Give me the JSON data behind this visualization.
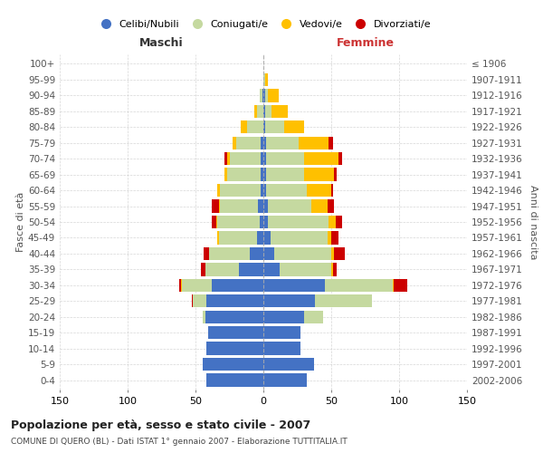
{
  "age_groups": [
    "0-4",
    "5-9",
    "10-14",
    "15-19",
    "20-24",
    "25-29",
    "30-34",
    "35-39",
    "40-44",
    "45-49",
    "50-54",
    "55-59",
    "60-64",
    "65-69",
    "70-74",
    "75-79",
    "80-84",
    "85-89",
    "90-94",
    "95-99",
    "100+"
  ],
  "birth_years": [
    "2002-2006",
    "1997-2001",
    "1992-1996",
    "1987-1991",
    "1982-1986",
    "1977-1981",
    "1972-1976",
    "1967-1971",
    "1962-1966",
    "1957-1961",
    "1952-1956",
    "1947-1951",
    "1942-1946",
    "1937-1941",
    "1932-1936",
    "1927-1931",
    "1922-1926",
    "1917-1921",
    "1912-1916",
    "1907-1911",
    "≤ 1906"
  ],
  "males": {
    "celibi": [
      42,
      45,
      42,
      41,
      43,
      42,
      38,
      18,
      10,
      5,
      3,
      4,
      2,
      2,
      2,
      2,
      0,
      0,
      1,
      0,
      0
    ],
    "coniugati": [
      0,
      0,
      0,
      0,
      2,
      10,
      22,
      25,
      30,
      28,
      31,
      28,
      30,
      25,
      23,
      18,
      12,
      5,
      2,
      0,
      0
    ],
    "vedovi": [
      0,
      0,
      0,
      0,
      0,
      0,
      1,
      0,
      0,
      1,
      1,
      1,
      2,
      2,
      2,
      3,
      5,
      2,
      0,
      0,
      0
    ],
    "divorziati": [
      0,
      0,
      0,
      0,
      0,
      1,
      1,
      3,
      4,
      0,
      3,
      5,
      0,
      0,
      2,
      0,
      0,
      0,
      0,
      0,
      0
    ]
  },
  "females": {
    "nubili": [
      32,
      37,
      27,
      27,
      30,
      38,
      45,
      12,
      8,
      5,
      3,
      3,
      2,
      2,
      2,
      2,
      1,
      1,
      1,
      0,
      0
    ],
    "coniugate": [
      0,
      0,
      0,
      0,
      14,
      42,
      50,
      38,
      42,
      42,
      45,
      32,
      30,
      28,
      28,
      24,
      14,
      5,
      2,
      1,
      0
    ],
    "vedove": [
      0,
      0,
      0,
      0,
      0,
      0,
      1,
      1,
      2,
      3,
      5,
      12,
      18,
      22,
      25,
      22,
      15,
      12,
      8,
      2,
      0
    ],
    "divorziate": [
      0,
      0,
      0,
      0,
      0,
      0,
      10,
      3,
      8,
      5,
      5,
      5,
      1,
      2,
      3,
      3,
      0,
      0,
      0,
      0,
      0
    ]
  },
  "colors": {
    "celibi": "#4472c4",
    "coniugati": "#c5d9a0",
    "vedovi": "#ffc000",
    "divorziati": "#cc0000"
  },
  "title": "Popolazione per età, sesso e stato civile - 2007",
  "subtitle": "COMUNE DI QUERO (BL) - Dati ISTAT 1° gennaio 2007 - Elaborazione TUTTITALIA.IT",
  "ylabel_left": "Fasce di età",
  "ylabel_right": "Anni di nascita",
  "xlabel_left": "Maschi",
  "xlabel_right": "Femmine",
  "xlim": 150,
  "legend_labels": [
    "Celibi/Nubili",
    "Coniugati/e",
    "Vedovi/e",
    "Divorziati/e"
  ],
  "background_color": "#ffffff",
  "grid_color": "#cccccc"
}
